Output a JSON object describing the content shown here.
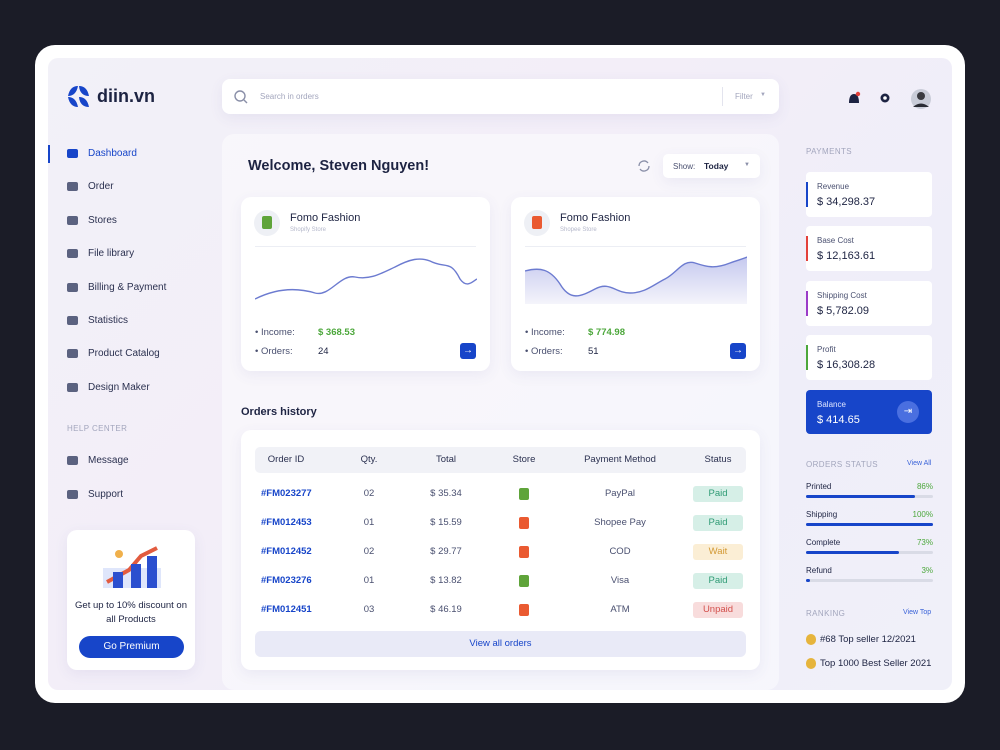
{
  "logo": "diin.vn",
  "nav": [
    "Dashboard",
    "Order",
    "Stores",
    "File library",
    "Billing & Payment",
    "Statistics",
    "Product Catalog",
    "Design Maker"
  ],
  "help_center": {
    "title": "HELP CENTER",
    "items": [
      "Message",
      "Support"
    ]
  },
  "promo": {
    "text": "Get up to 10% discount on all Products",
    "button": "Go Premium"
  },
  "search": {
    "placeholder": "Search in orders",
    "filter": "Filter"
  },
  "welcome": {
    "title": "Welcome, Steven Nguyen!",
    "show_label": "Show:",
    "show_value": "Today"
  },
  "stores": [
    {
      "name": "Fomo Fashion",
      "platform": "Shopify Store",
      "income_label": "Income:",
      "income": "$ 368.53",
      "orders_label": "Orders:",
      "orders": "24"
    },
    {
      "name": "Fomo Fashion",
      "platform": "Shopee Store",
      "income_label": "Income:",
      "income": "$ 774.98",
      "orders_label": "Orders:",
      "orders": "51"
    }
  ],
  "orders_history": {
    "title": "Orders history",
    "columns": [
      "Order ID",
      "Qty.",
      "Total",
      "Store",
      "Payment Method",
      "Status"
    ],
    "rows": [
      [
        "#FM023277",
        "02",
        "$ 35.34",
        "PayPal",
        "Paid"
      ],
      [
        "#FM012453",
        "01",
        "$ 15.59",
        "Shopee Pay",
        "Paid"
      ],
      [
        "#FM012452",
        "02",
        "$ 29.77",
        "COD",
        "Wait"
      ],
      [
        "#FM023276",
        "01",
        "$ 13.82",
        "Visa",
        "Paid"
      ],
      [
        "#FM012451",
        "03",
        "$ 46.19",
        "ATM",
        "Unpaid"
      ]
    ],
    "button": "View all orders"
  },
  "payments": {
    "title": "PAYMENTS",
    "items": [
      {
        "label": "Revenue",
        "value": "$ 34,298.37"
      },
      {
        "label": "Base Cost",
        "value": "$ 12,163.61"
      },
      {
        "label": "Shipping Cost",
        "value": "$ 5,782.09"
      },
      {
        "label": "Profit",
        "value": "$ 16,308.28"
      },
      {
        "label": "Balance",
        "value": "$ 414.65"
      }
    ]
  },
  "orders_status": {
    "title": "ORDERS STATUS",
    "link": "View All",
    "items": [
      {
        "label": "Printed",
        "value": 86,
        "value_label": "86%"
      },
      {
        "label": "Shipping",
        "value": 100,
        "value_label": "100%"
      },
      {
        "label": "Complete",
        "value": 73,
        "value_label": "73%"
      },
      {
        "label": "Refund",
        "value": 3,
        "value_label": "3%"
      }
    ]
  },
  "ranking": {
    "title": "RANKING",
    "link": "View Top",
    "items": [
      "#68 Top seller 12/2021",
      "Top 1000 Best Seller 2021"
    ]
  }
}
